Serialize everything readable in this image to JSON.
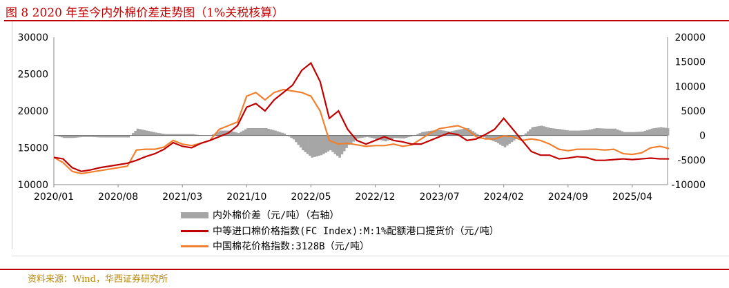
{
  "title": "图 8 2020 年至今内外棉价差走势图（1%关税核算）",
  "source": "资料来源：Wind，华西证券研究所",
  "chart_data": {
    "type": "line",
    "title": "图 8 2020 年至今内外棉价差走势图（1%关税核算）",
    "x_start": "2020/01",
    "x_step": "month",
    "xtick_labels": [
      "2020/01",
      "2020/08",
      "2021/03",
      "2021/10",
      "2022/05",
      "2022/12",
      "2023/07",
      "2024/02",
      "2024/09",
      "2025/04"
    ],
    "left_axis": {
      "ylim": [
        10000,
        30000
      ],
      "ticks": [
        "10000",
        "15000",
        "20000",
        "25000",
        "30000"
      ]
    },
    "right_axis": {
      "ylim": [
        -10000,
        20000
      ],
      "ticks": [
        "-10000",
        "-5000",
        "0",
        "5000",
        "10000",
        "15000",
        "20000"
      ]
    },
    "colors": {
      "spread": "#a6a6a6",
      "fc": "#c00000",
      "cc": "#f08030"
    },
    "series": [
      {
        "name": "内外棉价差（元/吨）（右轴）",
        "type": "area",
        "axis": "right",
        "derived": "cc - fc"
      },
      {
        "name": "中等进口棉价格指数(FC Index):M:1%配额港口提货价（元/吨）",
        "key": "fc",
        "values": [
          13700,
          13500,
          12300,
          11800,
          12000,
          12300,
          12500,
          12700,
          12900,
          13300,
          13800,
          14200,
          14800,
          15700,
          15200,
          15000,
          15600,
          16000,
          16500,
          17000,
          18000,
          20500,
          21000,
          20000,
          21500,
          22500,
          23500,
          25500,
          26500,
          24000,
          19000,
          20000,
          17500,
          16000,
          15500,
          16000,
          16500,
          16000,
          15800,
          15500,
          15500,
          16000,
          16500,
          17000,
          16800,
          16000,
          16200,
          16800,
          17500,
          19000,
          17500,
          16000,
          14500,
          14000,
          14000,
          13500,
          13600,
          13800,
          13700,
          13300,
          13300,
          13400,
          13500,
          13400,
          13500,
          13600,
          13500,
          13500
        ]
      },
      {
        "name": "中国棉花价格指数:3128B（元/吨）",
        "key": "cc",
        "values": [
          13700,
          13000,
          11800,
          11500,
          11700,
          11900,
          12100,
          12300,
          12500,
          14700,
          14800,
          14800,
          15100,
          16000,
          15500,
          15300,
          15600,
          16000,
          17500,
          18000,
          18500,
          22000,
          22500,
          21500,
          22500,
          22900,
          22700,
          22500,
          22000,
          20000,
          16000,
          15500,
          15600,
          15400,
          15200,
          15300,
          15300,
          15500,
          15200,
          15400,
          16200,
          17000,
          17600,
          17800,
          18000,
          17500,
          16500,
          16200,
          16200,
          16600,
          16500,
          16000,
          16200,
          16000,
          15500,
          14800,
          14600,
          14800,
          14800,
          14800,
          14700,
          14800,
          14200,
          14100,
          14300,
          15000,
          15200,
          14900
        ]
      }
    ],
    "legend": [
      "内外棉价差（元/吨）（右轴）",
      "中等进口棉价格指数(FC Index):M:1%配额港口提货价（元/吨）",
      "中国棉花价格指数:3128B（元/吨）"
    ],
    "legend_placement": "bottom"
  }
}
